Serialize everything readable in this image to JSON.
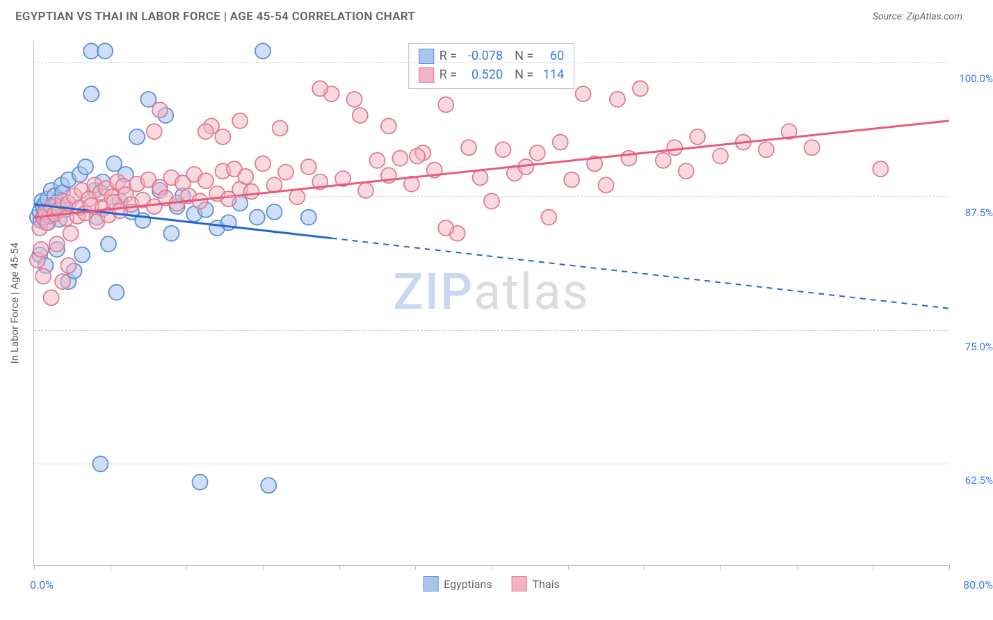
{
  "title": "EGYPTIAN VS THAI IN LABOR FORCE | AGE 45-54 CORRELATION CHART",
  "source": "Source: ZipAtlas.com",
  "yaxis_title": "In Labor Force | Age 45-54",
  "xaxis": {
    "min": 0,
    "max": 80,
    "left_label": "0.0%",
    "right_label": "80.0%",
    "ticks": [
      0,
      6.67,
      13.33,
      20,
      26.67,
      33.33,
      40,
      46.67,
      53.33,
      60,
      66.67,
      73.33,
      80
    ]
  },
  "yaxis": {
    "min": 53,
    "max": 102,
    "gridlines": [
      62.5,
      75.0,
      87.5,
      100.0
    ],
    "labels": [
      "62.5%",
      "75.0%",
      "87.5%",
      "100.0%"
    ]
  },
  "stats": [
    {
      "r": "-0.078",
      "n": "60"
    },
    {
      "r": "0.520",
      "n": "114"
    }
  ],
  "series": [
    {
      "name": "Egyptians",
      "fill": "#a9c5ec",
      "fill_opacity": 0.55,
      "stroke": "#5a8fd6",
      "line_color": "#1f66d0",
      "trend": {
        "solid_from_x": 0,
        "solid_to_x": 26,
        "y_at_0": 86.7,
        "y_at_80": 77.0
      },
      "points": [
        [
          0.3,
          85.5
        ],
        [
          0.5,
          86.0
        ],
        [
          0.6,
          85.2
        ],
        [
          0.7,
          87.0
        ],
        [
          0.8,
          86.5
        ],
        [
          0.9,
          85.8
        ],
        [
          1.0,
          86.8
        ],
        [
          1.1,
          85.0
        ],
        [
          1.2,
          87.2
        ],
        [
          1.3,
          86.1
        ],
        [
          1.4,
          85.6
        ],
        [
          1.5,
          88.0
        ],
        [
          1.6,
          86.4
        ],
        [
          1.8,
          87.5
        ],
        [
          2.0,
          86.9
        ],
        [
          2.2,
          85.3
        ],
        [
          2.4,
          88.5
        ],
        [
          2.5,
          87.8
        ],
        [
          2.7,
          86.2
        ],
        [
          3.0,
          89.0
        ],
        [
          0.5,
          82.0
        ],
        [
          1.0,
          81.0
        ],
        [
          2.0,
          82.5
        ],
        [
          3.0,
          79.5
        ],
        [
          3.5,
          80.5
        ],
        [
          4.0,
          89.5
        ],
        [
          4.2,
          82.0
        ],
        [
          4.5,
          90.2
        ],
        [
          5.0,
          97.0
        ],
        [
          5.0,
          101.0
        ],
        [
          5.3,
          88.0
        ],
        [
          5.5,
          85.5
        ],
        [
          6.0,
          88.8
        ],
        [
          6.2,
          101.0
        ],
        [
          6.5,
          83.0
        ],
        [
          7.0,
          90.5
        ],
        [
          7.2,
          78.5
        ],
        [
          7.5,
          87.0
        ],
        [
          8.0,
          89.5
        ],
        [
          8.5,
          86.0
        ],
        [
          9.0,
          93.0
        ],
        [
          9.5,
          85.2
        ],
        [
          10.0,
          96.5
        ],
        [
          11.0,
          88.0
        ],
        [
          11.5,
          95.0
        ],
        [
          12.0,
          84.0
        ],
        [
          12.5,
          86.5
        ],
        [
          13.0,
          87.5
        ],
        [
          14.0,
          85.8
        ],
        [
          15.0,
          86.2
        ],
        [
          16.0,
          84.5
        ],
        [
          17.0,
          85.0
        ],
        [
          18.0,
          86.8
        ],
        [
          19.5,
          85.5
        ],
        [
          20.0,
          101.0
        ],
        [
          21.0,
          86.0
        ],
        [
          24.0,
          85.5
        ],
        [
          5.8,
          62.5
        ],
        [
          14.5,
          60.8
        ],
        [
          20.5,
          60.5
        ]
      ]
    },
    {
      "name": "Thais",
      "fill": "#f2b3c2",
      "fill_opacity": 0.5,
      "stroke": "#e07a94",
      "line_color": "#e85a7a",
      "trend": {
        "solid_from_x": 0,
        "solid_to_x": 80,
        "y_at_0": 85.5,
        "y_at_80": 94.5
      },
      "points": [
        [
          0.5,
          84.5
        ],
        [
          0.8,
          85.5
        ],
        [
          1.0,
          86.0
        ],
        [
          1.2,
          85.0
        ],
        [
          1.5,
          86.5
        ],
        [
          1.8,
          85.8
        ],
        [
          2.0,
          83.0
        ],
        [
          2.2,
          86.2
        ],
        [
          2.5,
          87.0
        ],
        [
          2.8,
          85.4
        ],
        [
          3.0,
          86.8
        ],
        [
          3.2,
          84.0
        ],
        [
          3.5,
          87.5
        ],
        [
          3.8,
          85.6
        ],
        [
          4.0,
          86.4
        ],
        [
          4.2,
          88.0
        ],
        [
          4.5,
          85.9
        ],
        [
          4.8,
          87.2
        ],
        [
          5.0,
          86.6
        ],
        [
          5.3,
          88.5
        ],
        [
          5.5,
          85.1
        ],
        [
          5.8,
          87.8
        ],
        [
          6.0,
          86.3
        ],
        [
          6.3,
          88.2
        ],
        [
          6.5,
          85.7
        ],
        [
          6.8,
          87.4
        ],
        [
          7.0,
          86.9
        ],
        [
          7.3,
          88.8
        ],
        [
          7.5,
          86.1
        ],
        [
          7.8,
          88.4
        ],
        [
          8.0,
          87.6
        ],
        [
          8.5,
          86.7
        ],
        [
          9.0,
          88.6
        ],
        [
          9.5,
          87.1
        ],
        [
          10.0,
          89.0
        ],
        [
          10.5,
          86.5
        ],
        [
          11.0,
          88.3
        ],
        [
          11.5,
          87.3
        ],
        [
          12.0,
          89.2
        ],
        [
          12.5,
          86.8
        ],
        [
          13.0,
          88.7
        ],
        [
          13.5,
          87.5
        ],
        [
          14.0,
          89.5
        ],
        [
          14.5,
          87.0
        ],
        [
          15.0,
          88.9
        ],
        [
          15.5,
          94.0
        ],
        [
          16.0,
          87.7
        ],
        [
          16.5,
          89.8
        ],
        [
          17.0,
          87.2
        ],
        [
          17.5,
          90.0
        ],
        [
          18.0,
          88.1
        ],
        [
          18.5,
          89.3
        ],
        [
          19.0,
          87.9
        ],
        [
          20.0,
          90.5
        ],
        [
          21.0,
          88.5
        ],
        [
          22.0,
          89.7
        ],
        [
          23.0,
          87.4
        ],
        [
          24.0,
          90.2
        ],
        [
          25.0,
          88.8
        ],
        [
          26.0,
          97.0
        ],
        [
          27.0,
          89.1
        ],
        [
          28.0,
          96.5
        ],
        [
          29.0,
          88.0
        ],
        [
          30.0,
          90.8
        ],
        [
          31.0,
          89.4
        ],
        [
          32.0,
          91.0
        ],
        [
          33.0,
          88.6
        ],
        [
          34.0,
          91.5
        ],
        [
          35.0,
          89.9
        ],
        [
          36.0,
          96.0
        ],
        [
          37.0,
          84.0
        ],
        [
          38.0,
          92.0
        ],
        [
          39.0,
          89.2
        ],
        [
          40.0,
          87.0
        ],
        [
          41.0,
          91.8
        ],
        [
          42.0,
          89.6
        ],
        [
          11.0,
          95.5
        ],
        [
          10.5,
          93.5
        ],
        [
          15.0,
          93.5
        ],
        [
          16.5,
          93.0
        ],
        [
          18.0,
          94.5
        ],
        [
          21.5,
          93.8
        ],
        [
          25.0,
          97.5
        ],
        [
          28.5,
          95.0
        ],
        [
          31.0,
          94.0
        ],
        [
          33.5,
          91.2
        ],
        [
          36.0,
          84.5
        ],
        [
          43.0,
          90.2
        ],
        [
          44.0,
          91.5
        ],
        [
          45.0,
          85.5
        ],
        [
          46.0,
          92.5
        ],
        [
          47.0,
          89.0
        ],
        [
          48.0,
          97.0
        ],
        [
          49.0,
          90.5
        ],
        [
          50.0,
          88.5
        ],
        [
          51.0,
          96.5
        ],
        [
          52.0,
          91.0
        ],
        [
          55.0,
          90.8
        ],
        [
          53.0,
          97.5
        ],
        [
          56.0,
          92.0
        ],
        [
          57.0,
          89.8
        ],
        [
          58.0,
          93.0
        ],
        [
          60.0,
          91.2
        ],
        [
          62.0,
          92.5
        ],
        [
          64.0,
          91.8
        ],
        [
          66.0,
          93.5
        ],
        [
          68.0,
          92.0
        ],
        [
          74.0,
          90.0
        ],
        [
          1.5,
          78.0
        ],
        [
          2.5,
          79.5
        ],
        [
          0.8,
          80.0
        ],
        [
          3.0,
          81.0
        ],
        [
          0.3,
          81.5
        ],
        [
          0.6,
          82.5
        ]
      ]
    }
  ],
  "watermark": {
    "part1": "ZIP",
    "part2": "atlas"
  },
  "colors": {
    "title": "#5f6368",
    "axis_value": "#3b78e7",
    "grid": "#d0d0d0",
    "border": "#bdbdbd"
  },
  "marker_radius": 11
}
